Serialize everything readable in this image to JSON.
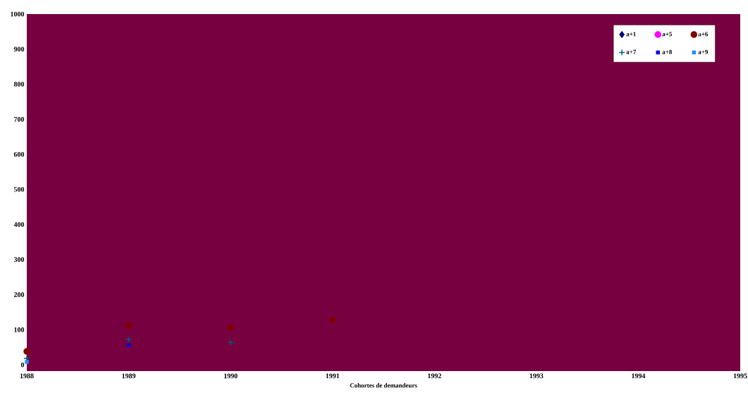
{
  "chart_data": {
    "type": "scatter",
    "xlabel": "Cohortes de demandeurs",
    "x": [
      1988,
      1989,
      1990,
      1991
    ],
    "xlim": [
      1988,
      1995
    ],
    "xticks": [
      1988,
      1989,
      1990,
      1991,
      1992,
      1993,
      1994,
      1995
    ],
    "ylim": [
      -18,
      1000
    ],
    "yticks": [
      0,
      100,
      200,
      300,
      400,
      500,
      600,
      700,
      800,
      900,
      1000
    ],
    "legend": "top right",
    "grid": false,
    "series": [
      {
        "name": "a+1",
        "color": "#000080",
        "marker": "diamond",
        "values": [
          null,
          null,
          null,
          null
        ]
      },
      {
        "name": "a+5",
        "color": "#ff00ff",
        "marker": "none",
        "values": [
          null,
          null,
          null,
          null
        ]
      },
      {
        "name": "a+6",
        "color": "#800000",
        "marker": "circle",
        "values": [
          38,
          112,
          106,
          128
        ]
      },
      {
        "name": "a+7",
        "color": "#006070",
        "marker": "cross",
        "values": [
          18,
          72,
          64,
          null
        ]
      },
      {
        "name": "a+8",
        "color": "#0000dd",
        "marker": "square",
        "values": [
          null,
          56,
          null,
          null
        ]
      },
      {
        "name": "a+9",
        "color": "#1e90ff",
        "marker": "square",
        "values": [
          8,
          null,
          null,
          null
        ]
      }
    ]
  }
}
